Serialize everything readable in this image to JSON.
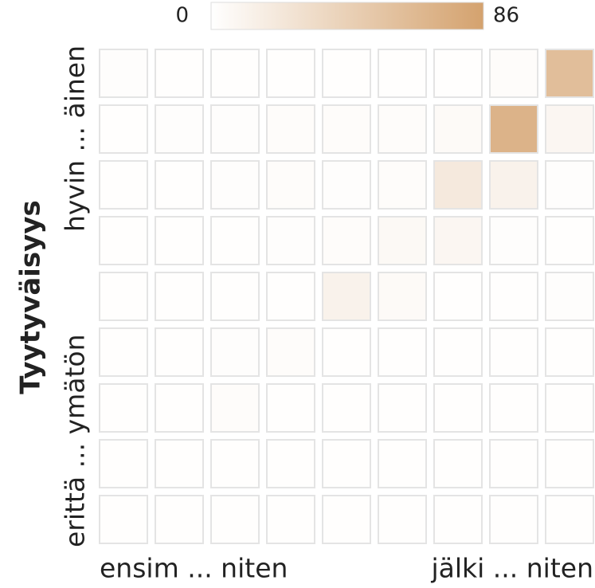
{
  "chart_data": {
    "type": "heatmap",
    "y_label": "Tyytyväisyys",
    "x_categories": [
      "ensim ... niten",
      null,
      null,
      null,
      null,
      null,
      null,
      null,
      "jälki ... niten"
    ],
    "y_categories": [
      "erittä ... ymätön",
      null,
      null,
      null,
      null,
      null,
      null,
      null,
      "hyvin ... äinen"
    ],
    "z": [
      [
        1,
        1,
        1,
        1,
        1,
        1,
        1,
        1,
        1
      ],
      [
        1,
        1,
        1,
        1,
        1,
        1,
        1,
        1,
        1
      ],
      [
        1,
        1,
        3,
        1,
        1,
        1,
        1,
        1,
        1
      ],
      [
        1,
        1,
        2,
        3,
        1,
        1,
        1,
        1,
        1
      ],
      [
        1,
        1,
        1,
        1,
        12,
        5,
        1,
        1,
        2
      ],
      [
        1,
        1,
        1,
        2,
        3,
        6,
        8,
        2,
        1
      ],
      [
        1,
        1,
        2,
        3,
        2,
        3,
        20,
        12,
        2
      ],
      [
        1,
        2,
        2,
        3,
        3,
        3,
        5,
        70,
        8
      ],
      [
        2,
        1,
        1,
        1,
        1,
        1,
        1,
        3,
        60
      ]
    ],
    "colorbar": {
      "lim": [
        0,
        86
      ],
      "ticks": [
        0,
        86
      ]
    },
    "colors": [
      "#ffffff",
      "#d4a26e"
    ]
  }
}
